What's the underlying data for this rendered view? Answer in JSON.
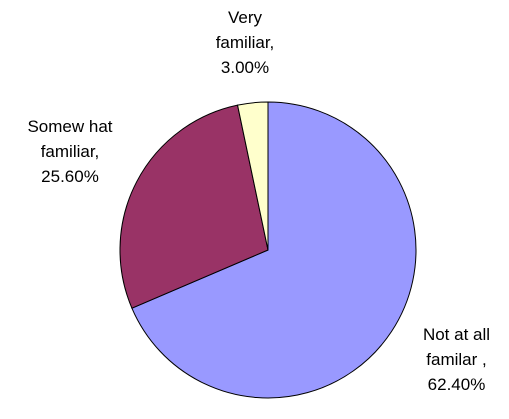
{
  "chart_data": {
    "type": "pie",
    "title": "",
    "slices": [
      {
        "name": "Not at all familar",
        "value": 62.4,
        "color": "#9999ff",
        "label_lines": [
          "Not at all",
          "familar ,",
          "62.40%"
        ]
      },
      {
        "name": "Somewhat familiar",
        "value": 25.6,
        "color": "#993366",
        "label_lines": [
          "Somew hat",
          "familiar,",
          "25.60%"
        ]
      },
      {
        "name": "Very familiar",
        "value": 3.0,
        "color": "#ffffcc",
        "label_lines": [
          "Very",
          "familiar,",
          "3.00%"
        ]
      }
    ],
    "legend": "none",
    "start_angle": "12 o'clock",
    "direction": "clockwise"
  }
}
